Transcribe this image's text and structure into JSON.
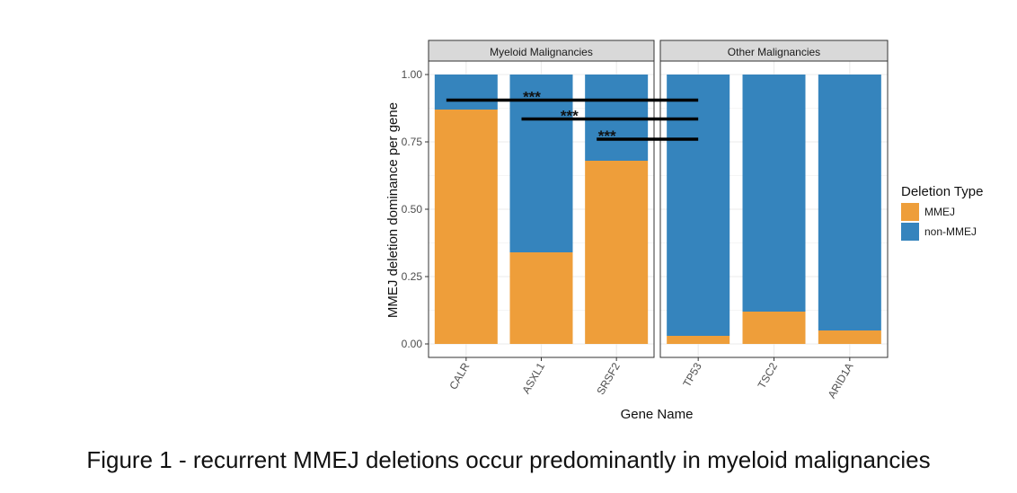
{
  "caption": "Figure 1 - recurrent MMEJ deletions occur predominantly in myeloid malignancies",
  "chart_data": {
    "type": "bar",
    "stacked": true,
    "xlabel": "Gene Name",
    "ylabel": "MMEJ deletion dominance per gene",
    "ylim": [
      0,
      1
    ],
    "yticks": [
      "0.00",
      "0.25",
      "0.50",
      "0.75",
      "1.00"
    ],
    "grid": true,
    "legend": {
      "title": "Deletion Type",
      "placement": "right",
      "entries": [
        {
          "name": "MMEJ",
          "color": "#EE9E3A"
        },
        {
          "name": "non-MMEJ",
          "color": "#3584BD"
        }
      ]
    },
    "panels": [
      {
        "title": "Myeloid Malignancies",
        "categories": [
          "CALR",
          "ASXL1",
          "SRSF2"
        ],
        "series": [
          {
            "name": "MMEJ",
            "values": [
              0.87,
              0.34,
              0.68
            ]
          },
          {
            "name": "non-MMEJ",
            "values": [
              0.13,
              0.66,
              0.32
            ]
          }
        ]
      },
      {
        "title": "Other Malignancies",
        "categories": [
          "TP53",
          "TSC2",
          "ARID1A"
        ],
        "series": [
          {
            "name": "MMEJ",
            "values": [
              0.03,
              0.12,
              0.05
            ]
          },
          {
            "name": "non-MMEJ",
            "values": [
              0.97,
              0.88,
              0.95
            ]
          }
        ]
      }
    ],
    "annotations": [
      {
        "label": "***",
        "from": "CALR",
        "to": "TP53",
        "y": 0.905
      },
      {
        "label": "***",
        "from": "ASXL1",
        "to": "TP53",
        "y": 0.835
      },
      {
        "label": "***",
        "from": "SRSF2",
        "to": "TP53",
        "y": 0.76
      }
    ]
  }
}
